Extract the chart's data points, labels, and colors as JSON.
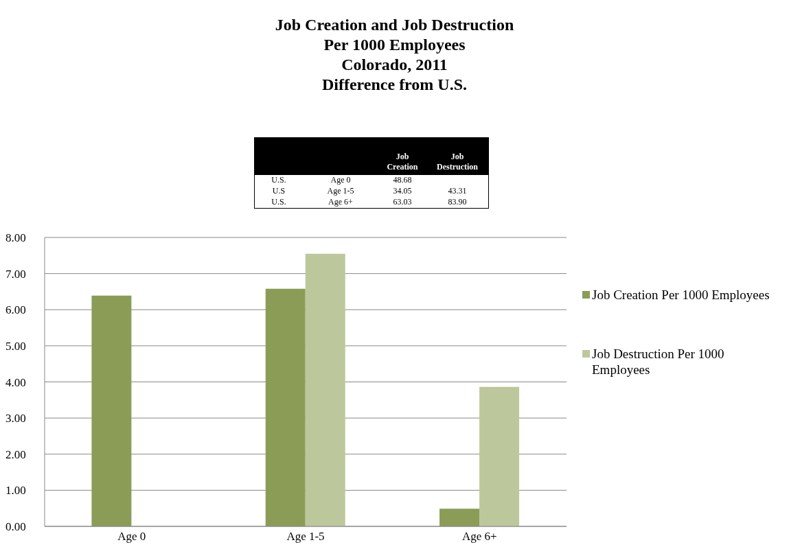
{
  "chart_data": {
    "type": "bar",
    "title": "Job Creation and Job Destruction\nPer 1000 Employees\nColorado, 2011\nDifference from U.S.",
    "categories": [
      "Age 0",
      "Age 1-5",
      "Age 6+"
    ],
    "series": [
      {
        "name": "Job Creation Per 1000 Employees",
        "color": "#8b9c57",
        "values": [
          6.39,
          6.58,
          0.49
        ]
      },
      {
        "name": "Job Destruction Per 1000 Employees",
        "color": "#bcc89b",
        "values": [
          null,
          7.55,
          3.86
        ]
      }
    ],
    "ylim": [
      0,
      8
    ],
    "yticks": [
      {
        "value": 0,
        "label": "0.00"
      },
      {
        "value": 1,
        "label": "1.00"
      },
      {
        "value": 2,
        "label": "2.00"
      },
      {
        "value": 3,
        "label": "3.00"
      },
      {
        "value": 4,
        "label": "4.00"
      },
      {
        "value": 5,
        "label": "5.00"
      },
      {
        "value": 6,
        "label": "6.00"
      },
      {
        "value": 7,
        "label": "7.00"
      },
      {
        "value": 8,
        "label": "8.00"
      }
    ],
    "grid": "y",
    "legend": "right",
    "annotations": [
      "Job Creation",
      "Job Destruction",
      "U.S.",
      "Age 0",
      "48.68",
      "U.S",
      "Age 1-5",
      "34.05",
      "43.31",
      "U.S.",
      "Age 6+",
      "63.03",
      "83.90"
    ]
  }
}
